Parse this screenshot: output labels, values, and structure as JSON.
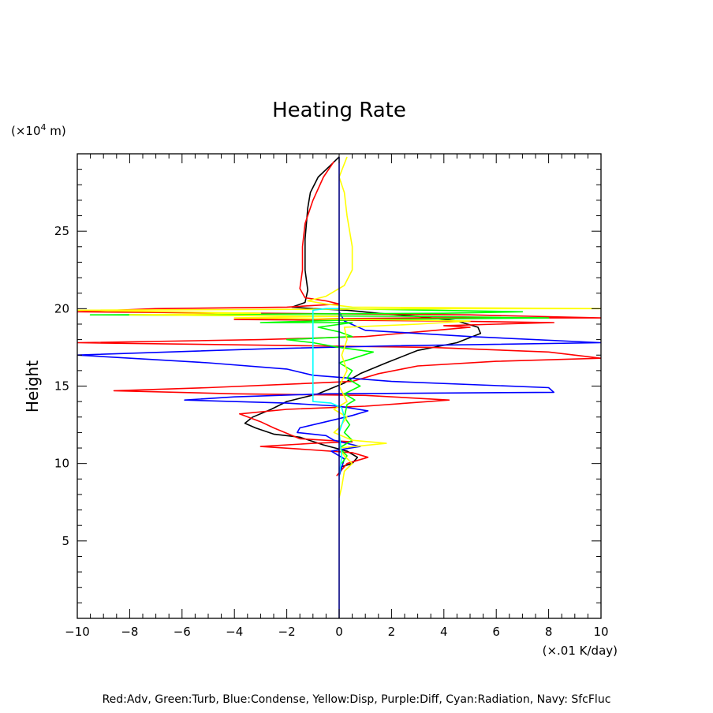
{
  "chart_data": {
    "type": "line",
    "title": "Heating Rate",
    "ylabel": "Height",
    "y_unit_prefix": "(×10",
    "y_unit_exp": "4",
    "y_unit_suffix": " m)",
    "x_unit": "(×.01 K/day)",
    "xlim": [
      -10,
      10
    ],
    "ylim": [
      0,
      30
    ],
    "xticks": [
      -10,
      -8,
      -6,
      -4,
      -2,
      0,
      2,
      4,
      6,
      8,
      10
    ],
    "yticks": [
      5,
      10,
      15,
      20,
      25
    ],
    "grid": false,
    "legend_text": "Red:Adv, Green:Turb, Blue:Condense, Yellow:Disp, Purple:Diff, Cyan:Radiation, Navy: SfcFluc",
    "series": [
      {
        "color": "#000000",
        "points": [
          [
            0,
            9.2
          ],
          [
            0.1,
            9.8
          ],
          [
            0.5,
            10.0
          ],
          [
            0.7,
            10.4
          ],
          [
            0.3,
            10.8
          ],
          [
            -0.6,
            11.2
          ],
          [
            -1.5,
            11.7
          ],
          [
            -2.5,
            11.9
          ],
          [
            -3.2,
            12.3
          ],
          [
            -3.6,
            12.6
          ],
          [
            -3.3,
            13.0
          ],
          [
            -2.6,
            13.5
          ],
          [
            -2.0,
            14.0
          ],
          [
            -0.8,
            14.5
          ],
          [
            0.2,
            15.2
          ],
          [
            0.8,
            15.8
          ],
          [
            1.8,
            16.5
          ],
          [
            3.0,
            17.3
          ],
          [
            4.5,
            17.8
          ],
          [
            5.4,
            18.4
          ],
          [
            5.3,
            18.8
          ],
          [
            4.5,
            19.2
          ],
          [
            3.0,
            19.5
          ],
          [
            1.5,
            19.7
          ],
          [
            0.3,
            19.9
          ],
          [
            -1.0,
            20.0
          ],
          [
            -1.8,
            20.1
          ],
          [
            -1.3,
            20.4
          ],
          [
            -1.2,
            21.2
          ],
          [
            -1.3,
            22.5
          ],
          [
            -1.3,
            24.5
          ],
          [
            -1.2,
            26.5
          ],
          [
            -1.1,
            27.5
          ],
          [
            -0.8,
            28.5
          ],
          [
            -0.3,
            29.3
          ],
          [
            0,
            29.8
          ]
        ]
      },
      {
        "color": "#ff0000",
        "points": [
          [
            -0.1,
            9.2
          ],
          [
            0.3,
            10.0
          ],
          [
            1.1,
            10.4
          ],
          [
            0.5,
            10.7
          ],
          [
            -1.2,
            10.9
          ],
          [
            -3.0,
            11.1
          ],
          [
            -1.0,
            11.3
          ],
          [
            0.5,
            11.4
          ],
          [
            -1.5,
            11.6
          ],
          [
            -2.5,
            12.3
          ],
          [
            -3.0,
            12.7
          ],
          [
            -3.8,
            13.2
          ],
          [
            -2.0,
            13.5
          ],
          [
            1.0,
            13.7
          ],
          [
            4.2,
            14.1
          ],
          [
            1.0,
            14.4
          ],
          [
            -4.0,
            14.5
          ],
          [
            -8.6,
            14.7
          ],
          [
            -5.0,
            14.9
          ],
          [
            0.5,
            15.3
          ],
          [
            1.5,
            15.8
          ],
          [
            3.0,
            16.3
          ],
          [
            6.0,
            16.6
          ],
          [
            10,
            16.8
          ],
          [
            8.0,
            17.2
          ],
          [
            3.5,
            17.5
          ],
          [
            -1.0,
            17.6
          ],
          [
            -10,
            17.8
          ],
          [
            -3.0,
            18.0
          ],
          [
            1.0,
            18.2
          ],
          [
            3.0,
            18.5
          ],
          [
            5.0,
            18.8
          ],
          [
            4.0,
            18.9
          ],
          [
            6.0,
            19.0
          ],
          [
            8.2,
            19.1
          ],
          [
            4.0,
            19.2
          ],
          [
            -4.0,
            19.3
          ],
          [
            3.0,
            19.4
          ],
          [
            10,
            19.4
          ],
          [
            5.0,
            19.6
          ],
          [
            -10,
            19.8
          ],
          [
            -7.0,
            20.0
          ],
          [
            -2.0,
            20.1
          ],
          [
            0.0,
            20.3
          ],
          [
            -0.5,
            20.5
          ],
          [
            -1.3,
            20.7
          ],
          [
            -1.5,
            21.3
          ],
          [
            -1.4,
            22.5
          ],
          [
            -1.4,
            24.0
          ],
          [
            -1.3,
            25.5
          ],
          [
            -1.0,
            27.0
          ],
          [
            -0.6,
            28.5
          ],
          [
            -0.2,
            29.5
          ]
        ]
      },
      {
        "color": "#0000ff",
        "points": [
          [
            0,
            9.2
          ],
          [
            0.2,
            10.3
          ],
          [
            -0.3,
            10.8
          ],
          [
            0.8,
            11.1
          ],
          [
            -0.2,
            11.5
          ],
          [
            -0.5,
            11.8
          ],
          [
            -1.6,
            12.0
          ],
          [
            -1.5,
            12.3
          ],
          [
            -0.5,
            12.7
          ],
          [
            0.5,
            13.1
          ],
          [
            1.1,
            13.4
          ],
          [
            0.0,
            13.7
          ],
          [
            -2.0,
            13.9
          ],
          [
            -5.9,
            14.1
          ],
          [
            -4.0,
            14.3
          ],
          [
            -0.5,
            14.5
          ],
          [
            8.2,
            14.6
          ],
          [
            8.0,
            14.9
          ],
          [
            2.0,
            15.3
          ],
          [
            -1.0,
            15.7
          ],
          [
            -2.0,
            16.1
          ],
          [
            -5.0,
            16.5
          ],
          [
            -10,
            17.0
          ],
          [
            -3.0,
            17.4
          ],
          [
            2.0,
            17.6
          ],
          [
            10,
            17.8
          ],
          [
            5.0,
            18.2
          ],
          [
            1.0,
            18.6
          ],
          [
            0.2,
            19.2
          ],
          [
            0,
            19.8
          ]
        ]
      },
      {
        "color": "#00ff00",
        "points": [
          [
            0.1,
            10.0
          ],
          [
            0.3,
            10.5
          ],
          [
            0.0,
            11.0
          ],
          [
            0.5,
            11.5
          ],
          [
            0.2,
            12.0
          ],
          [
            0.4,
            12.5
          ],
          [
            0.2,
            13.0
          ],
          [
            0.3,
            13.8
          ],
          [
            0.6,
            14.1
          ],
          [
            0.2,
            14.5
          ],
          [
            0.8,
            15.0
          ],
          [
            0.3,
            15.5
          ],
          [
            0.5,
            16.0
          ],
          [
            0.0,
            16.5
          ],
          [
            1.3,
            17.2
          ],
          [
            0.0,
            17.5
          ],
          [
            -1.0,
            17.8
          ],
          [
            -2.0,
            18.0
          ],
          [
            0.5,
            18.2
          ],
          [
            0.0,
            18.5
          ],
          [
            -0.8,
            18.8
          ],
          [
            0.5,
            19.1
          ],
          [
            -3.0,
            19.1
          ],
          [
            1.0,
            19.3
          ],
          [
            8.0,
            19.4
          ],
          [
            3.0,
            19.5
          ],
          [
            -9.5,
            19.6
          ],
          [
            4.0,
            19.7
          ],
          [
            7.0,
            19.8
          ],
          [
            0.0,
            20.0
          ]
        ]
      },
      {
        "color": "#ffff00",
        "points": [
          [
            0,
            7.8
          ],
          [
            0.1,
            8.5
          ],
          [
            0.2,
            9.5
          ],
          [
            0.5,
            10.0
          ],
          [
            0.2,
            10.5
          ],
          [
            0.0,
            11.0
          ],
          [
            1.8,
            11.3
          ],
          [
            0.5,
            11.5
          ],
          [
            -0.2,
            12.0
          ],
          [
            0.0,
            12.3
          ],
          [
            0.3,
            13.0
          ],
          [
            -0.2,
            13.5
          ],
          [
            0.3,
            14.0
          ],
          [
            0.0,
            15.0
          ],
          [
            0.3,
            16.0
          ],
          [
            0.1,
            17.0
          ],
          [
            0.3,
            18.0
          ],
          [
            0.2,
            18.8
          ],
          [
            3.0,
            19.0
          ],
          [
            5.0,
            19.2
          ],
          [
            1.0,
            19.3
          ],
          [
            -4.0,
            19.4
          ],
          [
            0.0,
            19.5
          ],
          [
            -8.0,
            19.6
          ],
          [
            -3.0,
            19.7
          ],
          [
            -10,
            19.9
          ],
          [
            5.0,
            20.0
          ],
          [
            10,
            20.0
          ],
          [
            0.5,
            20.1
          ],
          [
            -0.5,
            20.3
          ],
          [
            -1.2,
            20.5
          ],
          [
            -0.5,
            20.8
          ],
          [
            0.2,
            21.5
          ],
          [
            0.5,
            22.5
          ],
          [
            0.5,
            24.0
          ],
          [
            0.3,
            26.0
          ],
          [
            0.2,
            27.5
          ],
          [
            0.0,
            28.5
          ],
          [
            0.3,
            29.8
          ]
        ]
      },
      {
        "color": "#00ffff",
        "points": [
          [
            0,
            9.2
          ],
          [
            0.1,
            10.5
          ],
          [
            0.0,
            12.0
          ],
          [
            0.2,
            13.0
          ],
          [
            0.1,
            13.6
          ],
          [
            -0.3,
            13.9
          ],
          [
            -1.0,
            14.0
          ],
          [
            -1.0,
            15.0
          ],
          [
            -1.0,
            17.0
          ],
          [
            -1.0,
            19.0
          ],
          [
            -1.0,
            19.9
          ],
          [
            -0.5,
            20.0
          ],
          [
            0,
            20.0
          ]
        ]
      },
      {
        "color": "#000080",
        "points": [
          [
            0,
            0
          ],
          [
            0,
            29.8
          ]
        ]
      }
    ]
  }
}
